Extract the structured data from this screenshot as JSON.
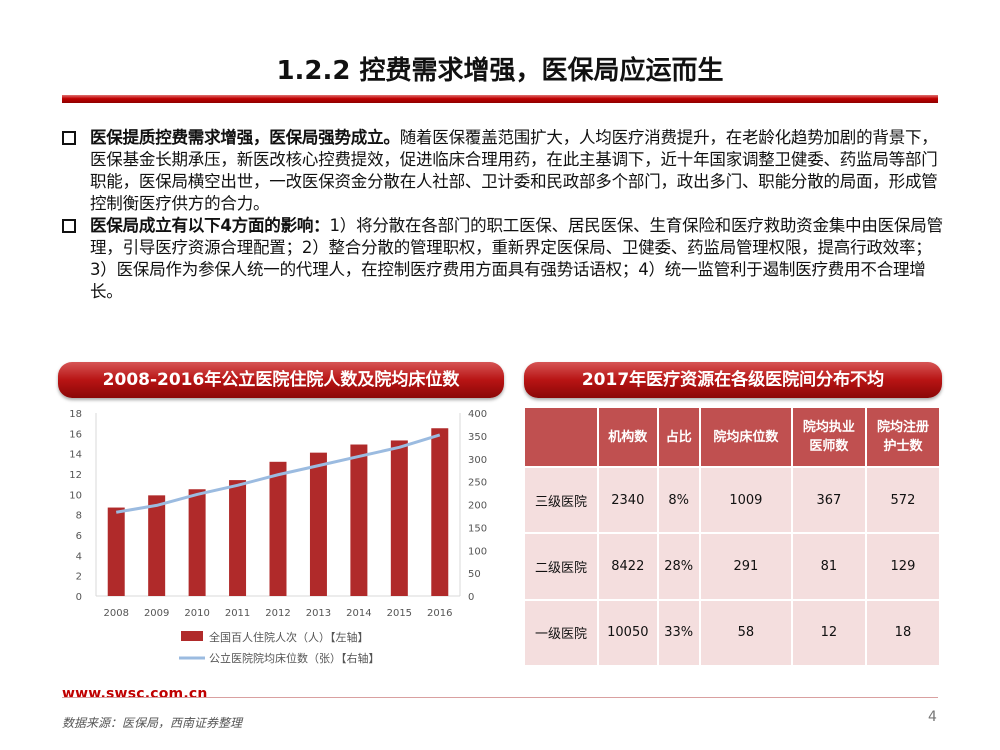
{
  "title": "1.2.2 控费需求增强，医保局应运而生",
  "bullets": [
    {
      "bold": "医保提质控费需求增强，医保局强势成立。",
      "text": "随着医保覆盖范围扩大，人均医疗消费提升，在老龄化趋势加剧的背景下，医保基金长期承压，新医改核心控费提效，促进临床合理用药，在此主基调下，近十年国家调整卫健委、药监局等部门职能，医保局横空出世，一改医保资金分散在人社部、卫计委和民政部多个部门，政出多门、职能分散的局面，形成管控制衡医疗供方的合力。"
    },
    {
      "bold": "医保局成立有以下4方面的影响：",
      "text": "1）将分散在各部门的职工医保、居民医保、生育保险和医疗救助资金集中由医保局管理，引导医疗资源合理配置；2）整合分散的管理职权，重新界定医保局、卫健委、药监局管理权限，提高行政效率；3）医保局作为参保人统一的代理人，在控制医疗费用方面具有强势话语权；4）统一监管利于遏制医疗费用不合理增长。"
    }
  ],
  "left_banner": "2008-2016年公立医院住院人数及院均床位数",
  "right_banner": "2017年医疗资源在各级医院间分布不均",
  "chart_data": {
    "type": "bar",
    "categories": [
      "2008",
      "2009",
      "2010",
      "2011",
      "2012",
      "2013",
      "2014",
      "2015",
      "2016"
    ],
    "series": [
      {
        "name": "全国百人住院人次（人）【左轴】",
        "type": "bar",
        "axis": "left",
        "values": [
          8.7,
          9.9,
          10.5,
          11.4,
          13.2,
          14.1,
          14.9,
          15.3,
          16.5
        ]
      },
      {
        "name": "公立医院院均床位数（张）【右轴】",
        "type": "line",
        "axis": "right",
        "values": [
          183,
          198,
          222,
          242,
          265,
          285,
          305,
          325,
          352
        ]
      }
    ],
    "left_ticks": [
      "0",
      "2",
      "4",
      "6",
      "8",
      "10",
      "12",
      "14",
      "16",
      "18"
    ],
    "right_ticks": [
      "0",
      "50",
      "100",
      "150",
      "200",
      "250",
      "300",
      "350",
      "400"
    ],
    "ylim_left": [
      0,
      18
    ],
    "ylim_right": [
      0,
      400
    ],
    "colors": {
      "bar": "#b02a2a",
      "line": "#9bbbe0",
      "grid": "#d9d9d9",
      "tick": "#555555"
    }
  },
  "table": {
    "headers": [
      "机构数",
      "占比",
      "院均床位数",
      "院均执业医师数",
      "院均注册护士数"
    ],
    "headers_display": [
      [
        "机构数"
      ],
      [
        "占比"
      ],
      [
        "院均床位数"
      ],
      [
        "院均执业",
        "医师数"
      ],
      [
        "院均注册",
        "护士数"
      ]
    ],
    "rows": [
      {
        "label": "三级医院",
        "cells": [
          "2340",
          "8%",
          "1009",
          "367",
          "572"
        ]
      },
      {
        "label": "二级医院",
        "cells": [
          "8422",
          "28%",
          "291",
          "81",
          "129"
        ]
      },
      {
        "label": "一级医院",
        "cells": [
          "10050",
          "33%",
          "58",
          "12",
          "18"
        ]
      }
    ]
  },
  "footer": {
    "site": "www.swsc.com.cn",
    "source": "数据来源：医保局，西南证券整理",
    "page": "4"
  }
}
